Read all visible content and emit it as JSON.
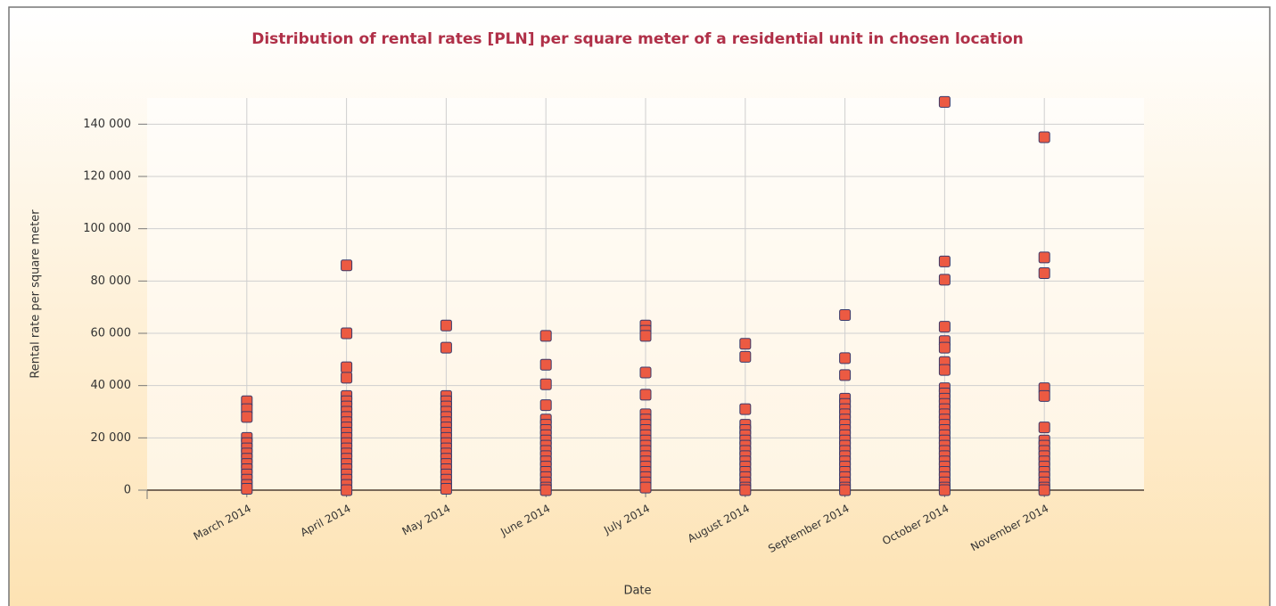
{
  "chart_data": {
    "type": "strip",
    "title": "Distribution of rental rates [PLN]  per square meter of a residential unit in chosen location",
    "x_label": "Date",
    "y_label": "Rental rate per square meter",
    "categories": [
      "March 2014",
      "April 2014",
      "May 2014",
      "June 2014",
      "July 2014",
      "August 2014",
      "September 2014",
      "October 2014",
      "November 2014"
    ],
    "values": [
      [
        34000,
        31000,
        28000,
        20000,
        18000,
        16000,
        14000,
        12000,
        10000,
        8000,
        6000,
        4000,
        2000,
        500
      ],
      [
        86000,
        60000,
        47000,
        43000,
        36000,
        34000,
        32000,
        30000,
        28000,
        26000,
        24000,
        22000,
        20000,
        18000,
        16000,
        14000,
        12000,
        10000,
        8000,
        6000,
        4000,
        2000,
        0
      ],
      [
        63000,
        54500,
        36000,
        34000,
        32000,
        30000,
        28000,
        26000,
        24000,
        22000,
        20000,
        18000,
        16000,
        14000,
        12000,
        10000,
        8000,
        6000,
        4000,
        2000,
        500
      ],
      [
        59000,
        48000,
        40500,
        32500,
        27000,
        25000,
        23000,
        21000,
        19000,
        17000,
        15000,
        13000,
        11000,
        9000,
        7000,
        5000,
        3000,
        1000,
        0
      ],
      [
        63000,
        61000,
        59000,
        45000,
        36500,
        29000,
        27000,
        25000,
        23000,
        21000,
        19000,
        17000,
        15000,
        13000,
        11000,
        9000,
        7000,
        5000,
        3000,
        1000
      ],
      [
        56000,
        51000,
        31000,
        25000,
        23000,
        21000,
        19000,
        17000,
        15000,
        13000,
        11000,
        9000,
        7000,
        5000,
        3000,
        1000,
        0
      ],
      [
        67000,
        50500,
        44000,
        35000,
        33000,
        31000,
        29000,
        27000,
        25000,
        23000,
        21000,
        19000,
        17000,
        15000,
        13000,
        11000,
        9000,
        7000,
        5000,
        3000,
        1000,
        0
      ],
      [
        148500,
        87500,
        80500,
        62500,
        57000,
        54500,
        49000,
        46000,
        39000,
        37000,
        35000,
        33000,
        31000,
        29000,
        27000,
        25000,
        23000,
        21000,
        19000,
        17000,
        15000,
        13000,
        11000,
        9000,
        7000,
        5000,
        3000,
        1000,
        0
      ],
      [
        135000,
        89000,
        83000,
        39000,
        36000,
        24000,
        19000,
        17000,
        15000,
        13000,
        11000,
        9000,
        7000,
        5000,
        3000,
        1000,
        0
      ]
    ],
    "color": "#ec5a42",
    "ylim": [
      0,
      150000
    ],
    "yticks": [
      0,
      {
        "value": 20000,
        "label": "20 000"
      },
      {
        "value": 40000,
        "label": "40 000"
      },
      {
        "value": 60000,
        "label": "60 000"
      },
      {
        "value": 80000,
        "label": "80 000"
      },
      {
        "value": 100000,
        "label": "100 000"
      },
      {
        "value": 120000,
        "label": "120 000"
      },
      {
        "value": 140000,
        "label": "140 000"
      }
    ],
    "grid": true
  }
}
